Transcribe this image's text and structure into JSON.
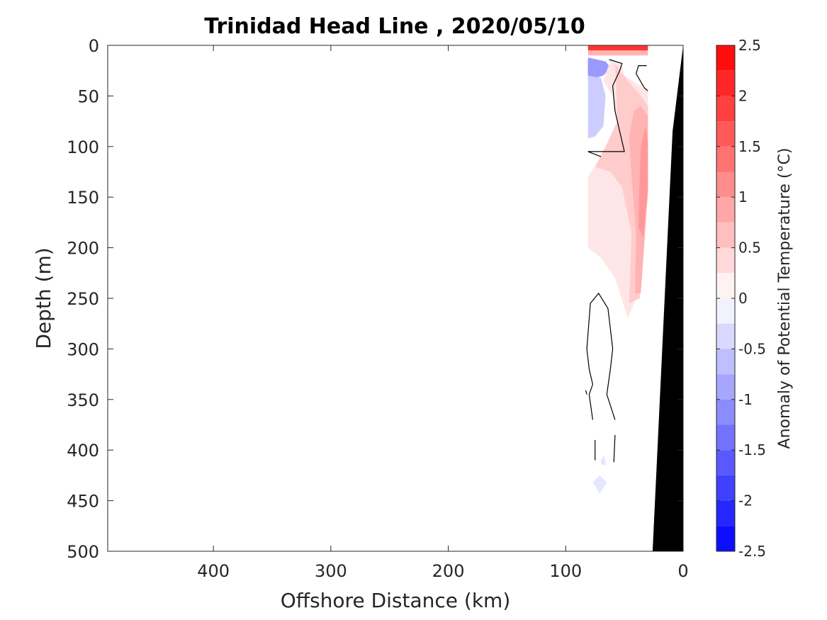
{
  "chart_data": {
    "type": "heatmap",
    "title": "Trinidad Head Line , 2020/05/10",
    "xlabel": "Offshore Distance (km)",
    "ylabel": "Depth (m)",
    "colorbar_label": "Anomaly of Potential Temperature (°C)",
    "x_reversed": true,
    "y_reversed": true,
    "xlim": [
      0,
      490
    ],
    "ylim": [
      0,
      500
    ],
    "xticks": [
      400,
      300,
      200,
      100,
      0
    ],
    "yticks": [
      0,
      50,
      100,
      150,
      200,
      250,
      300,
      350,
      400,
      450,
      500
    ],
    "colorbar": {
      "range": [
        -2.5,
        2.5
      ],
      "step": 0.25,
      "ticks": [
        2.5,
        2,
        1.5,
        1,
        0.5,
        0,
        -0.5,
        -1,
        -1.5,
        -2,
        -2.5
      ],
      "max_color": "#ff0000",
      "min_color": "#0000ff",
      "zero_color": "#ffffff"
    },
    "bathymetry": {
      "color": "#000000",
      "points": [
        {
          "x": 0,
          "y": 0
        },
        {
          "x": 9,
          "y": 85
        },
        {
          "x": 26,
          "y": 500
        },
        {
          "x": 0,
          "y": 500
        }
      ]
    },
    "anomaly_patches": [
      {
        "value": 2.0,
        "points": [
          [
            81,
            0
          ],
          [
            30,
            0
          ],
          [
            30,
            5
          ],
          [
            55,
            7
          ],
          [
            81,
            5
          ]
        ]
      },
      {
        "value": 0.75,
        "points": [
          [
            81,
            5
          ],
          [
            30,
            5
          ],
          [
            30,
            10
          ],
          [
            81,
            10
          ]
        ]
      },
      {
        "value": -2.0,
        "points": [
          [
            81,
            14
          ],
          [
            74,
            16
          ],
          [
            70,
            22
          ],
          [
            74,
            28
          ],
          [
            81,
            30
          ]
        ]
      },
      {
        "value": -1.0,
        "points": [
          [
            81,
            12
          ],
          [
            66,
            16
          ],
          [
            62,
            22
          ],
          [
            68,
            30
          ],
          [
            81,
            34
          ]
        ]
      },
      {
        "value": -0.5,
        "points": [
          [
            81,
            30
          ],
          [
            70,
            32
          ],
          [
            66,
            50
          ],
          [
            68,
            80
          ],
          [
            75,
            90
          ],
          [
            81,
            92
          ]
        ]
      },
      {
        "value": -0.25,
        "points": [
          [
            70,
            410
          ],
          [
            67,
            405
          ],
          [
            66,
            415
          ],
          [
            70,
            414
          ]
        ]
      },
      {
        "value": -0.25,
        "points": [
          [
            71,
            425
          ],
          [
            65,
            432
          ],
          [
            71,
            443
          ],
          [
            77,
            432
          ]
        ]
      },
      {
        "value": 0.25,
        "points": [
          [
            62,
            15
          ],
          [
            52,
            20
          ],
          [
            50,
            30
          ],
          [
            30,
            45
          ],
          [
            30,
            150
          ],
          [
            40,
            250
          ],
          [
            47,
            270
          ],
          [
            58,
            230
          ],
          [
            70,
            210
          ],
          [
            81,
            200
          ],
          [
            81,
            130
          ],
          [
            70,
            110
          ],
          [
            55,
            85
          ],
          [
            60,
            50
          ],
          [
            68,
            35
          ]
        ]
      },
      {
        "value": 0.5,
        "points": [
          [
            58,
            18
          ],
          [
            52,
            28
          ],
          [
            36,
            50
          ],
          [
            30,
            60
          ],
          [
            30,
            145
          ],
          [
            37,
            250
          ],
          [
            46,
            255
          ],
          [
            44,
            185
          ],
          [
            52,
            140
          ],
          [
            62,
            125
          ],
          [
            75,
            120
          ],
          [
            66,
            100
          ],
          [
            56,
            75
          ],
          [
            57,
            40
          ]
        ]
      },
      {
        "value": 0.75,
        "points": [
          [
            36,
            60
          ],
          [
            30,
            70
          ],
          [
            30,
            145
          ],
          [
            36,
            245
          ],
          [
            41,
            245
          ],
          [
            40,
            185
          ],
          [
            44,
            130
          ],
          [
            46,
            90
          ],
          [
            42,
            65
          ]
        ]
      },
      {
        "value": 1.0,
        "points": [
          [
            32,
            80
          ],
          [
            30,
            95
          ],
          [
            30,
            140
          ],
          [
            34,
            190
          ],
          [
            38,
            180
          ],
          [
            37,
            130
          ],
          [
            36,
            100
          ]
        ]
      }
    ],
    "zero_contours": [
      [
        [
          63,
          14
        ],
        [
          52,
          18
        ],
        [
          54,
          25
        ],
        [
          60,
          40
        ],
        [
          58,
          65
        ],
        [
          54,
          85
        ],
        [
          50,
          105
        ],
        [
          81,
          105
        ]
      ],
      [
        [
          31,
          20
        ],
        [
          38,
          20
        ],
        [
          40,
          28
        ],
        [
          33,
          42
        ],
        [
          30,
          45
        ]
      ],
      [
        [
          81,
          105
        ],
        [
          70,
          110
        ]
      ],
      [
        [
          82,
          300
        ],
        [
          79,
          255
        ],
        [
          72,
          245
        ],
        [
          64,
          260
        ],
        [
          62,
          280
        ],
        [
          60,
          300
        ],
        [
          62,
          320
        ],
        [
          65,
          345
        ],
        [
          58,
          370
        ]
      ],
      [
        [
          82,
          300
        ],
        [
          80,
          320
        ],
        [
          77,
          335
        ],
        [
          80,
          345
        ],
        [
          77,
          370
        ]
      ],
      [
        [
          75,
          390
        ],
        [
          75,
          410
        ]
      ],
      [
        [
          58,
          385
        ],
        [
          59,
          412
        ]
      ],
      [
        [
          83,
          341
        ],
        [
          82,
          345
        ]
      ]
    ]
  }
}
